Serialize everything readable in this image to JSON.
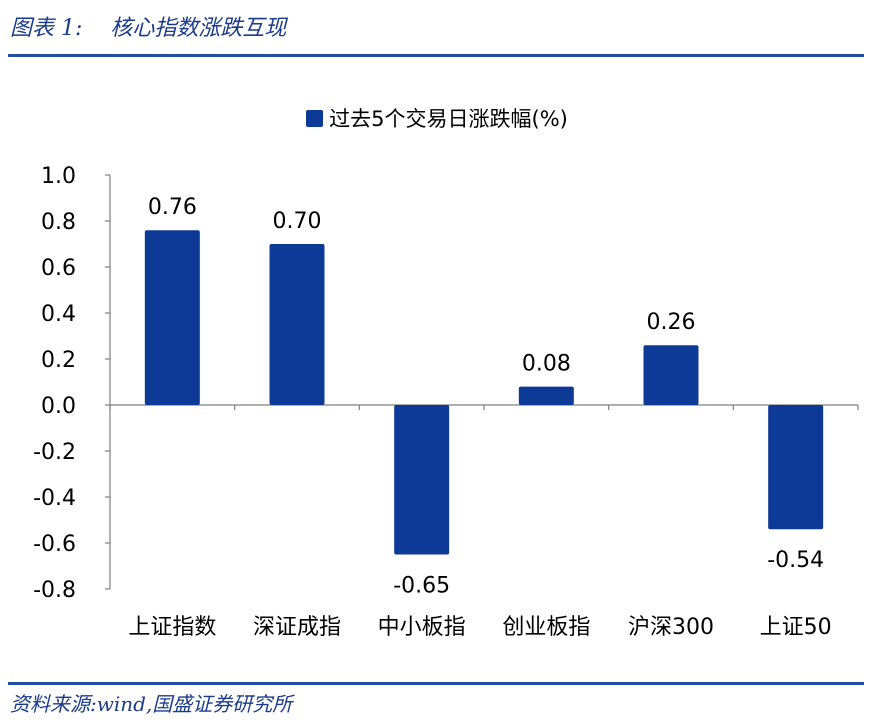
{
  "header": {
    "title": "图表 1:    核心指数涨跌互现"
  },
  "footer": {
    "source": "资料来源:wind,国盛证券研究所"
  },
  "chart_data": {
    "type": "bar",
    "categories": [
      "上证指数",
      "深证成指",
      "中小板指",
      "创业板指",
      "沪深300",
      "上证50"
    ],
    "series": [
      {
        "name": "过去5个交易日涨跌幅(%)",
        "values": [
          0.76,
          0.7,
          -0.65,
          0.08,
          0.26,
          -0.54
        ]
      }
    ],
    "data_labels": [
      "0.76",
      "0.70",
      "-0.65",
      "0.08",
      "0.26",
      "-0.54"
    ],
    "ylim": [
      -0.8,
      1.0
    ],
    "yticks": [
      "1.0",
      "0.8",
      "0.6",
      "0.4",
      "0.2",
      "0.0",
      "-0.2",
      "-0.4",
      "-0.6",
      "-0.8"
    ],
    "ytick_values": [
      1.0,
      0.8,
      0.6,
      0.4,
      0.2,
      0.0,
      -0.2,
      -0.4,
      -0.6,
      -0.8
    ],
    "legend_position": "top-center",
    "grid": false,
    "bar_color": "#0e3a97"
  }
}
